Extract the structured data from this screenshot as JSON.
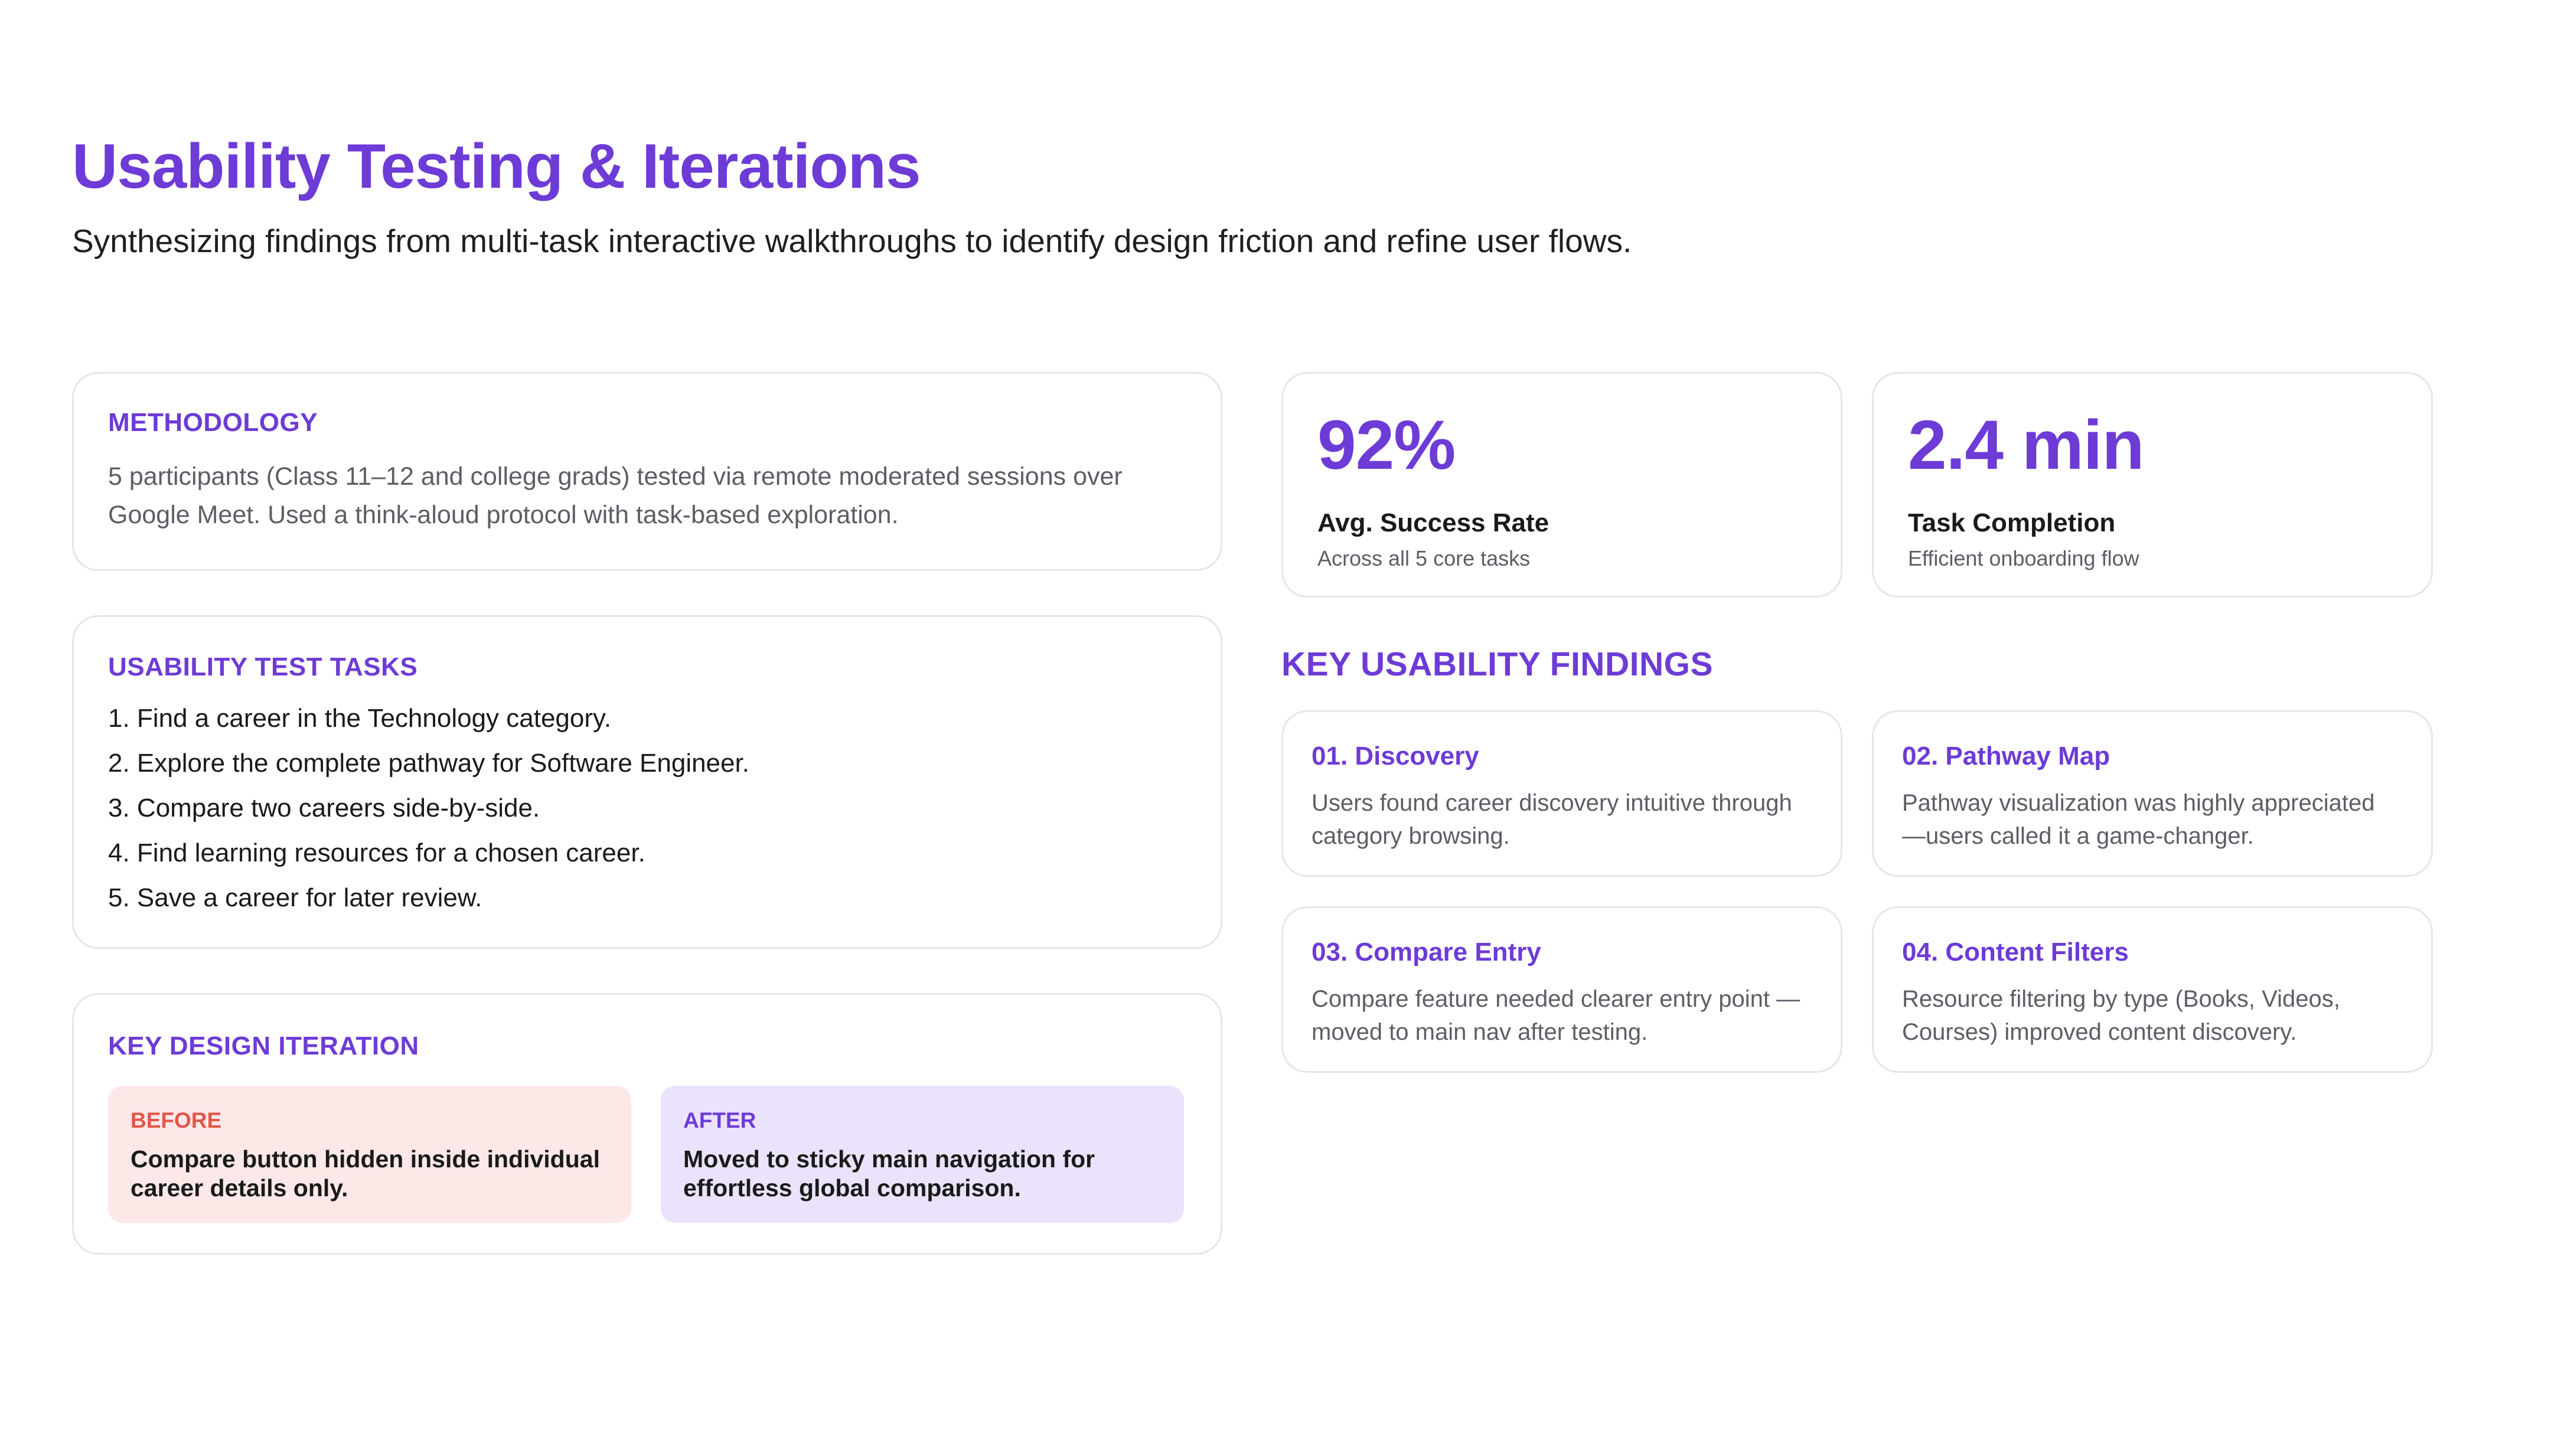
{
  "header": {
    "title": "Usability Testing & Iterations",
    "subtitle": "Synthesizing findings from multi-task interactive walkthroughs to identify design friction and refine user flows."
  },
  "methodology": {
    "label": "METHODOLOGY",
    "text": "5 participants (Class 11–12 and college grads) tested via remote moderated sessions over Google Meet. Used a think-aloud protocol with task-based exploration."
  },
  "tasks": {
    "label": "USABILITY TEST TASKS",
    "items": [
      "1. Find a career in the Technology category.",
      "2. Explore the complete pathway for Software Engineer.",
      "3. Compare two careers side-by-side.",
      "4. Find learning resources for a chosen career.",
      "5. Save a career for later review."
    ]
  },
  "iteration": {
    "label": "KEY DESIGN ITERATION",
    "before": {
      "tag": "BEFORE",
      "text": "Compare button hidden inside individual career details only."
    },
    "after": {
      "tag": "AFTER",
      "text": "Moved to sticky main navigation for effortless global comparison."
    }
  },
  "stats": [
    {
      "value": "92%",
      "label": "Avg. Success Rate",
      "caption": "Across all 5 core tasks"
    },
    {
      "value": "2.4 min",
      "label": "Task Completion",
      "caption": "Efficient onboarding flow"
    }
  ],
  "findings": {
    "heading": "KEY USABILITY FINDINGS",
    "items": [
      {
        "title": "01. Discovery",
        "text": "Users found career discovery intuitive through category browsing."
      },
      {
        "title": "02. Pathway Map",
        "text": "Pathway visualization was highly appreciated —users called it a game-changer."
      },
      {
        "title": "03. Compare Entry",
        "text": "Compare feature needed clearer entry point —moved to main nav after testing."
      },
      {
        "title": "04. Content Filters",
        "text": "Resource filtering by type (Books, Videos, Courses) improved content discovery."
      }
    ]
  },
  "colors": {
    "accent": "#6d3bd6",
    "before_bg": "#fde8e8",
    "before_accent": "#e3564a",
    "after_bg": "#ebe3fb",
    "card_border": "#e6e6ea"
  }
}
